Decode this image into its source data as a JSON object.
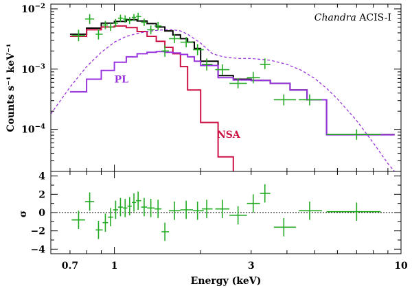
{
  "chart_data": [
    {
      "type": "line",
      "panel": "top",
      "x_scale": "log",
      "y_scale": "log",
      "xlim": [
        0.6,
        10
      ],
      "ylim": [
        2e-05,
        0.012
      ],
      "ylabel": "Counts s⁻¹ keV⁻¹",
      "instrument_label_italic": "Chandra",
      "instrument_label_rest": " ACIS-I",
      "y_ticks": [
        {
          "value": 0.01,
          "base": "10",
          "exp": "−2"
        },
        {
          "value": 0.001,
          "base": "10",
          "exp": "−3"
        },
        {
          "value": 0.0001,
          "base": "10",
          "exp": "−4"
        }
      ],
      "series": [
        {
          "name": "Total model",
          "color": "#000000",
          "style": "step",
          "edges": [
            0.7,
            0.8,
            0.9,
            1.0,
            1.1,
            1.2,
            1.3,
            1.4,
            1.5,
            1.6,
            1.7,
            1.8,
            1.9,
            2.0,
            2.3,
            2.6,
            3.0,
            3.5,
            4.1,
            4.7,
            5.5,
            9.5
          ],
          "values": [
            0.0038,
            0.0048,
            0.0058,
            0.0062,
            0.0066,
            0.0063,
            0.0057,
            0.005,
            0.0043,
            0.0037,
            0.0032,
            0.0028,
            0.0022,
            0.00135,
            0.00078,
            0.00068,
            0.00065,
            0.00058,
            0.00045,
            0.00031,
            8.2e-05
          ]
        },
        {
          "name": "NSA",
          "color": "#cc1144",
          "style": "step",
          "edges": [
            0.7,
            0.8,
            0.9,
            1.0,
            1.1,
            1.2,
            1.3,
            1.4,
            1.5,
            1.6,
            1.7,
            1.8,
            2.0,
            2.3,
            2.6
          ],
          "values": [
            0.0035,
            0.0045,
            0.005,
            0.0052,
            0.0049,
            0.0042,
            0.0035,
            0.0029,
            0.0023,
            0.0018,
            0.0011,
            0.00045,
            0.00013,
            3.5e-05
          ],
          "label": "NSA",
          "label_at": [
            2.28,
            7.2e-05
          ]
        },
        {
          "name": "PL",
          "color": "#9933dd",
          "style": "step",
          "edges": [
            0.7,
            0.8,
            0.9,
            1.0,
            1.1,
            1.2,
            1.3,
            1.4,
            1.5,
            1.6,
            1.7,
            1.8,
            1.9,
            2.0,
            2.3,
            2.6,
            3.0,
            3.5,
            4.1,
            4.7,
            5.5,
            9.5
          ],
          "values": [
            0.00042,
            0.00068,
            0.00095,
            0.0013,
            0.0016,
            0.0018,
            0.0019,
            0.00195,
            0.0019,
            0.00185,
            0.00175,
            0.0016,
            0.00135,
            0.00115,
            0.00072,
            0.00066,
            0.00065,
            0.00058,
            0.00045,
            0.00031,
            8.1e-05
          ],
          "label": "PL",
          "label_at": [
            1.0,
            0.0006
          ]
        },
        {
          "name": "Unabsorbed PL",
          "color": "#9933dd",
          "style": "dashed",
          "x": [
            0.6,
            0.7,
            0.8,
            0.9,
            1.0,
            1.1,
            1.2,
            1.3,
            1.4,
            1.5,
            1.6,
            1.7,
            1.8,
            2.0,
            2.2,
            2.4,
            2.7,
            3.0,
            3.5,
            4.0,
            4.5,
            5.0,
            5.5,
            6.0,
            7.0,
            8.0,
            9.0,
            9.5
          ],
          "y": [
            0.00018,
            0.0005,
            0.0011,
            0.0019,
            0.0028,
            0.0035,
            0.0039,
            0.0042,
            0.0044,
            0.0045,
            0.0045,
            0.0043,
            0.0038,
            0.0027,
            0.0018,
            0.0016,
            0.0015,
            0.0015,
            0.0014,
            0.0012,
            0.00095,
            0.0007,
            0.00048,
            0.00032,
            0.00014,
            6e-05,
            2.7e-05,
            2e-05
          ]
        }
      ],
      "data_points": {
        "name": "ACIS-I data",
        "color": "#22aa22",
        "points": [
          {
            "x": 0.75,
            "xerr": [
              0.71,
              0.79
            ],
            "y": 0.0036,
            "yerr": [
              0.0029,
              0.0045
            ]
          },
          {
            "x": 0.82,
            "xerr": [
              0.79,
              0.85
            ],
            "y": 0.0068,
            "yerr": [
              0.0056,
              0.0082
            ]
          },
          {
            "x": 0.88,
            "xerr": [
              0.86,
              0.91
            ],
            "y": 0.0038,
            "yerr": [
              0.0031,
              0.0046
            ]
          },
          {
            "x": 0.93,
            "xerr": [
              0.91,
              0.95
            ],
            "y": 0.0054,
            "yerr": [
              0.0046,
              0.0063
            ]
          },
          {
            "x": 0.97,
            "xerr": [
              0.95,
              0.99
            ],
            "y": 0.005,
            "yerr": [
              0.0043,
              0.0058
            ]
          },
          {
            "x": 1.01,
            "xerr": [
              0.99,
              1.03
            ],
            "y": 0.0058,
            "yerr": [
              0.005,
              0.0068
            ]
          },
          {
            "x": 1.05,
            "xerr": [
              1.03,
              1.07
            ],
            "y": 0.007,
            "yerr": [
              0.0061,
              0.008
            ]
          },
          {
            "x": 1.09,
            "xerr": [
              1.07,
              1.11
            ],
            "y": 0.0068,
            "yerr": [
              0.0059,
              0.0078
            ]
          },
          {
            "x": 1.13,
            "xerr": [
              1.11,
              1.15
            ],
            "y": 0.0064,
            "yerr": [
              0.0056,
              0.0073
            ]
          },
          {
            "x": 1.17,
            "xerr": [
              1.15,
              1.19
            ],
            "y": 0.0072,
            "yerr": [
              0.0063,
              0.0082
            ]
          },
          {
            "x": 1.21,
            "xerr": [
              1.19,
              1.24
            ],
            "y": 0.0075,
            "yerr": [
              0.0065,
              0.0086
            ]
          },
          {
            "x": 1.27,
            "xerr": [
              1.24,
              1.3
            ],
            "y": 0.006,
            "yerr": [
              0.0052,
              0.0069
            ]
          },
          {
            "x": 1.34,
            "xerr": [
              1.3,
              1.38
            ],
            "y": 0.0045,
            "yerr": [
              0.0038,
              0.0053
            ]
          },
          {
            "x": 1.42,
            "xerr": [
              1.38,
              1.46
            ],
            "y": 0.0052,
            "yerr": [
              0.0044,
              0.0061
            ]
          },
          {
            "x": 1.5,
            "xerr": [
              1.46,
              1.55
            ],
            "y": 0.002,
            "yerr": [
              0.0016,
              0.0025
            ]
          },
          {
            "x": 1.62,
            "xerr": [
              1.55,
              1.7
            ],
            "y": 0.0032,
            "yerr": [
              0.0027,
              0.0038
            ]
          },
          {
            "x": 1.78,
            "xerr": [
              1.7,
              1.88
            ],
            "y": 0.0028,
            "yerr": [
              0.0023,
              0.0034
            ]
          },
          {
            "x": 1.95,
            "xerr": [
              1.88,
              2.05
            ],
            "y": 0.0021,
            "yerr": [
              0.0017,
              0.0026
            ]
          },
          {
            "x": 2.1,
            "xerr": [
              2.02,
              2.2
            ],
            "y": 0.0012,
            "yerr": [
              0.00095,
              0.0015
            ]
          },
          {
            "x": 2.38,
            "xerr": [
              2.25,
              2.52
            ],
            "y": 0.00098,
            "yerr": [
              0.0008,
              0.0012
            ]
          },
          {
            "x": 2.7,
            "xerr": [
              2.52,
              2.9
            ],
            "y": 0.00058,
            "yerr": [
              0.00048,
              0.0007
            ]
          },
          {
            "x": 3.05,
            "xerr": [
              2.9,
              3.22
            ],
            "y": 0.00072,
            "yerr": [
              0.00058,
              0.0009
            ]
          },
          {
            "x": 3.35,
            "xerr": [
              3.22,
              3.5
            ],
            "y": 0.0012,
            "yerr": [
              0.001,
              0.0015
            ]
          },
          {
            "x": 3.9,
            "xerr": [
              3.6,
              4.3
            ],
            "y": 0.00031,
            "yerr": [
              0.00025,
              0.00038
            ]
          },
          {
            "x": 4.8,
            "xerr": [
              4.4,
              5.3
            ],
            "y": 0.00031,
            "yerr": [
              0.00025,
              0.00038
            ]
          },
          {
            "x": 7.0,
            "xerr": [
              5.5,
              8.5
            ],
            "y": 8.2e-05,
            "yerr": [
              6.7e-05,
              0.0001
            ]
          }
        ]
      }
    },
    {
      "type": "scatter",
      "panel": "bottom",
      "x_scale": "log",
      "xlim": [
        0.6,
        10
      ],
      "ylim": [
        -4.5,
        4.5
      ],
      "xlabel": "Energy (keV)",
      "ylabel": "σ",
      "x_ticks": [
        {
          "value": 0.7,
          "label": "0.7"
        },
        {
          "value": 1,
          "label": "1"
        },
        {
          "value": 3,
          "label": "3"
        },
        {
          "value": 10,
          "label": "10"
        }
      ],
      "y_ticks": [
        {
          "value": 4,
          "label": "4"
        },
        {
          "value": 2,
          "label": "2"
        },
        {
          "value": 0,
          "label": "0"
        },
        {
          "value": -2,
          "label": "−2"
        },
        {
          "value": -4,
          "label": "−4"
        }
      ],
      "zero_line": true,
      "color": "#22aa22",
      "points": [
        {
          "x": 0.75,
          "xerr": [
            0.71,
            0.79
          ],
          "y": -0.8
        },
        {
          "x": 0.82,
          "xerr": [
            0.79,
            0.85
          ],
          "y": 1.2
        },
        {
          "x": 0.88,
          "xerr": [
            0.86,
            0.91
          ],
          "y": -1.9
        },
        {
          "x": 0.93,
          "xerr": [
            0.91,
            0.95
          ],
          "y": -1.1
        },
        {
          "x": 0.97,
          "xerr": [
            0.95,
            0.99
          ],
          "y": -0.5
        },
        {
          "x": 1.01,
          "xerr": [
            0.99,
            1.03
          ],
          "y": 0.3
        },
        {
          "x": 1.05,
          "xerr": [
            1.03,
            1.07
          ],
          "y": 0.6
        },
        {
          "x": 1.09,
          "xerr": [
            1.07,
            1.11
          ],
          "y": 0.5
        },
        {
          "x": 1.13,
          "xerr": [
            1.11,
            1.15
          ],
          "y": 0.7
        },
        {
          "x": 1.17,
          "xerr": [
            1.15,
            1.19
          ],
          "y": 1.1
        },
        {
          "x": 1.21,
          "xerr": [
            1.19,
            1.24
          ],
          "y": 1.3
        },
        {
          "x": 1.27,
          "xerr": [
            1.24,
            1.3
          ],
          "y": 0.6
        },
        {
          "x": 1.34,
          "xerr": [
            1.3,
            1.38
          ],
          "y": 0.5
        },
        {
          "x": 1.42,
          "xerr": [
            1.38,
            1.46
          ],
          "y": 0.4
        },
        {
          "x": 1.5,
          "xerr": [
            1.46,
            1.55
          ],
          "y": -2.1
        },
        {
          "x": 1.62,
          "xerr": [
            1.55,
            1.7
          ],
          "y": 0.2
        },
        {
          "x": 1.78,
          "xerr": [
            1.7,
            1.88
          ],
          "y": 0.3
        },
        {
          "x": 1.95,
          "xerr": [
            1.88,
            2.05
          ],
          "y": 0.2
        },
        {
          "x": 2.1,
          "xerr": [
            2.02,
            2.2
          ],
          "y": 0.4
        },
        {
          "x": 2.38,
          "xerr": [
            2.25,
            2.52
          ],
          "y": 0.4
        },
        {
          "x": 2.7,
          "xerr": [
            2.52,
            2.9
          ],
          "y": -0.3
        },
        {
          "x": 3.05,
          "xerr": [
            2.9,
            3.22
          ],
          "y": 1.0
        },
        {
          "x": 3.35,
          "xerr": [
            3.22,
            3.5
          ],
          "y": 2.1
        },
        {
          "x": 3.9,
          "xerr": [
            3.6,
            4.3
          ],
          "y": -1.6
        },
        {
          "x": 4.8,
          "xerr": [
            4.4,
            5.3
          ],
          "y": 0.2
        },
        {
          "x": 7.0,
          "xerr": [
            5.5,
            8.5
          ],
          "y": 0.1
        }
      ]
    }
  ]
}
